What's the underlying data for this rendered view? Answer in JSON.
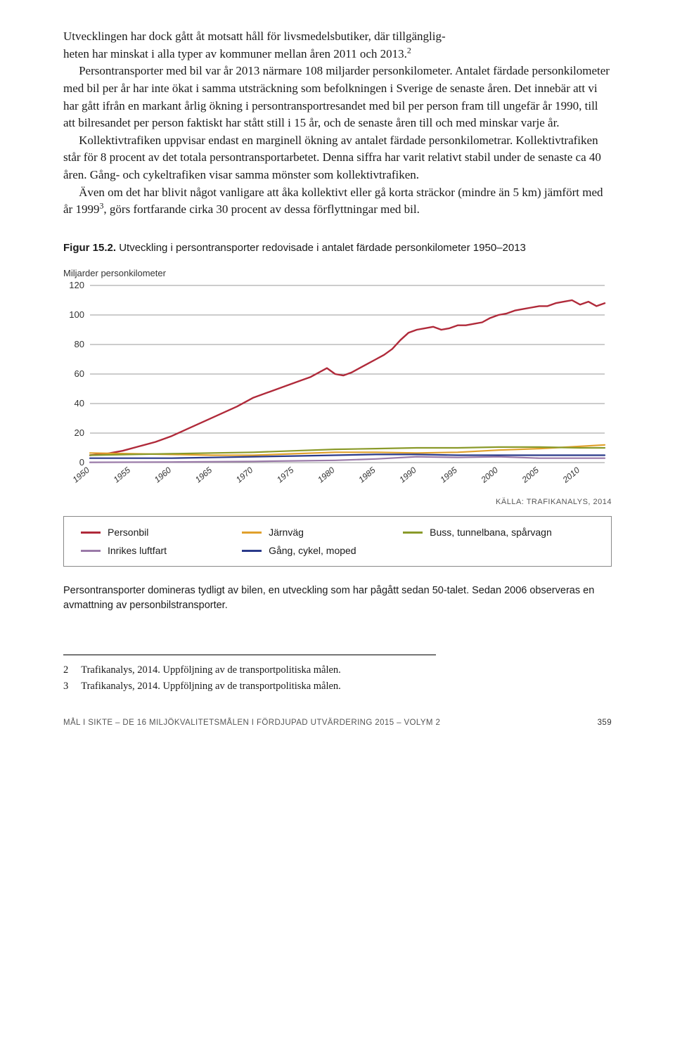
{
  "body": {
    "p1a": "Utvecklingen har dock gått åt motsatt håll för livsmedelsbutiker, där tillgänglig-",
    "p1b": "heten har minskat i alla typer av kommuner mellan åren 2011 och 2013.",
    "sup1": "2",
    "p2": "Persontransporter med bil var år 2013 närmare 108 miljarder personkilometer. Antalet färdade personkilometer med bil per år har inte ökat i samma utsträckning som befolkningen i Sverige de senaste åren. Det innebär att vi har gått ifrån en markant årlig ökning i persontransportresandet med bil per person fram till ungefär år 1990, till att bilresandet per person faktiskt har stått still i 15 år, och de senaste åren till och med minskar varje år.",
    "p3": "Kollektivtrafiken uppvisar endast en marginell ökning av antalet färdade personkilometrar. Kollektivtrafiken står för 8 procent av det totala persontransportarbetet. Denna siffra har varit relativt stabil under de senaste ca 40 åren. Gång- och cykeltrafiken visar samma mönster som kollektivtrafiken.",
    "p4a": "Även om det har blivit något vanligare att åka kollektivt eller gå korta sträckor (mindre än 5 km) jämfört med år 1999",
    "sup2": "3",
    "p4b": ", görs fortfarande cirka 30 procent av dessa förflyttningar med bil."
  },
  "figure": {
    "label": "Figur 15.2.",
    "caption": " Utveckling i persontransporter redovisade i antalet färdade personkilometer 1950–2013",
    "y_axis_title": "Miljarder personkilometer",
    "source": "KÄLLA: TRAFIKANALYS, 2014",
    "chart": {
      "type": "line",
      "ylim": [
        0,
        120
      ],
      "yticks": [
        0,
        20,
        40,
        60,
        80,
        100,
        120
      ],
      "xticks": [
        1950,
        1955,
        1960,
        1965,
        1970,
        1975,
        1980,
        1985,
        1990,
        1995,
        2000,
        2005,
        2010
      ],
      "background_color": "#ffffff",
      "grid_color": "#9a9a9a",
      "series": [
        {
          "name": "Personbil",
          "color": "#b02a3a",
          "width": 2.4,
          "points": [
            [
              1950,
              5
            ],
            [
              1952,
              6
            ],
            [
              1954,
              8
            ],
            [
              1956,
              11
            ],
            [
              1958,
              14
            ],
            [
              1960,
              18
            ],
            [
              1962,
              23
            ],
            [
              1964,
              28
            ],
            [
              1966,
              33
            ],
            [
              1968,
              38
            ],
            [
              1970,
              44
            ],
            [
              1972,
              48
            ],
            [
              1974,
              52
            ],
            [
              1976,
              56
            ],
            [
              1977,
              58
            ],
            [
              1978,
              61
            ],
            [
              1979,
              64
            ],
            [
              1980,
              60
            ],
            [
              1981,
              59
            ],
            [
              1982,
              61
            ],
            [
              1983,
              64
            ],
            [
              1984,
              67
            ],
            [
              1985,
              70
            ],
            [
              1986,
              73
            ],
            [
              1987,
              77
            ],
            [
              1988,
              83
            ],
            [
              1989,
              88
            ],
            [
              1990,
              90
            ],
            [
              1991,
              91
            ],
            [
              1992,
              92
            ],
            [
              1993,
              90
            ],
            [
              1994,
              91
            ],
            [
              1995,
              93
            ],
            [
              1996,
              93
            ],
            [
              1997,
              94
            ],
            [
              1998,
              95
            ],
            [
              1999,
              98
            ],
            [
              2000,
              100
            ],
            [
              2001,
              101
            ],
            [
              2002,
              103
            ],
            [
              2003,
              104
            ],
            [
              2004,
              105
            ],
            [
              2005,
              106
            ],
            [
              2006,
              106
            ],
            [
              2007,
              108
            ],
            [
              2008,
              109
            ],
            [
              2009,
              110
            ],
            [
              2010,
              107
            ],
            [
              2011,
              109
            ],
            [
              2012,
              106
            ],
            [
              2013,
              108
            ]
          ]
        },
        {
          "name": "Järnväg",
          "color": "#e0a02c",
          "width": 2.2,
          "points": [
            [
              1950,
              6.5
            ],
            [
              1955,
              6
            ],
            [
              1960,
              5.5
            ],
            [
              1965,
              5
            ],
            [
              1970,
              5
            ],
            [
              1975,
              6
            ],
            [
              1980,
              7
            ],
            [
              1985,
              7
            ],
            [
              1990,
              6.5
            ],
            [
              1995,
              7
            ],
            [
              2000,
              8.5
            ],
            [
              2005,
              9.5
            ],
            [
              2010,
              11
            ],
            [
              2013,
              12
            ]
          ]
        },
        {
          "name": "Buss, tunnelbana, spårvagn",
          "color": "#8a9a2a",
          "width": 2.2,
          "points": [
            [
              1950,
              5
            ],
            [
              1955,
              5.5
            ],
            [
              1960,
              6
            ],
            [
              1965,
              6.5
            ],
            [
              1970,
              7
            ],
            [
              1975,
              8
            ],
            [
              1980,
              9
            ],
            [
              1985,
              9.5
            ],
            [
              1990,
              10
            ],
            [
              1995,
              10
            ],
            [
              2000,
              10.5
            ],
            [
              2005,
              10.5
            ],
            [
              2010,
              10
            ],
            [
              2013,
              10
            ]
          ]
        },
        {
          "name": "Inrikes luftfart",
          "color": "#9a7aa8",
          "width": 2.2,
          "points": [
            [
              1950,
              0.2
            ],
            [
              1960,
              0.4
            ],
            [
              1970,
              0.8
            ],
            [
              1980,
              1.5
            ],
            [
              1985,
              2.5
            ],
            [
              1990,
              4
            ],
            [
              1995,
              3.5
            ],
            [
              2000,
              4
            ],
            [
              2005,
              3
            ],
            [
              2010,
              3
            ],
            [
              2013,
              3
            ]
          ]
        },
        {
          "name": "Gång, cykel, moped",
          "color": "#2a3a8a",
          "width": 2.2,
          "points": [
            [
              1950,
              3
            ],
            [
              1955,
              3
            ],
            [
              1960,
              3
            ],
            [
              1965,
              3.5
            ],
            [
              1970,
              4
            ],
            [
              1975,
              4.5
            ],
            [
              1980,
              5
            ],
            [
              1985,
              5.5
            ],
            [
              1990,
              5.5
            ],
            [
              1995,
              5
            ],
            [
              2000,
              5
            ],
            [
              2005,
              5
            ],
            [
              2010,
              5
            ],
            [
              2013,
              5
            ]
          ]
        }
      ]
    },
    "legend": [
      {
        "label": "Personbil",
        "color": "#b02a3a"
      },
      {
        "label": "Järnväg",
        "color": "#e0a02c"
      },
      {
        "label": "Buss, tunnelbana, spårvagn",
        "color": "#8a9a2a"
      },
      {
        "label": "Inrikes luftfart",
        "color": "#9a7aa8"
      },
      {
        "label": "Gång, cykel, moped",
        "color": "#2a3a8a"
      }
    ],
    "subcaption": "Persontransporter domineras tydligt av bilen, en utveckling som har pågått sedan 50-talet. Sedan 2006 observeras en avmattning av personbilstransporter."
  },
  "footnotes": [
    {
      "num": "2",
      "text": "Trafikanalys, 2014. Uppföljning av de transportpolitiska målen."
    },
    {
      "num": "3",
      "text": "Trafikanalys, 2014. Uppföljning av de transportpolitiska målen."
    }
  ],
  "footer": {
    "text": "MÅL I SIKTE – DE 16 MILJÖKVALITETSMÅLEN I FÖRDJUPAD UTVÄRDERING 2015 – VOLYM 2",
    "page": "359"
  }
}
